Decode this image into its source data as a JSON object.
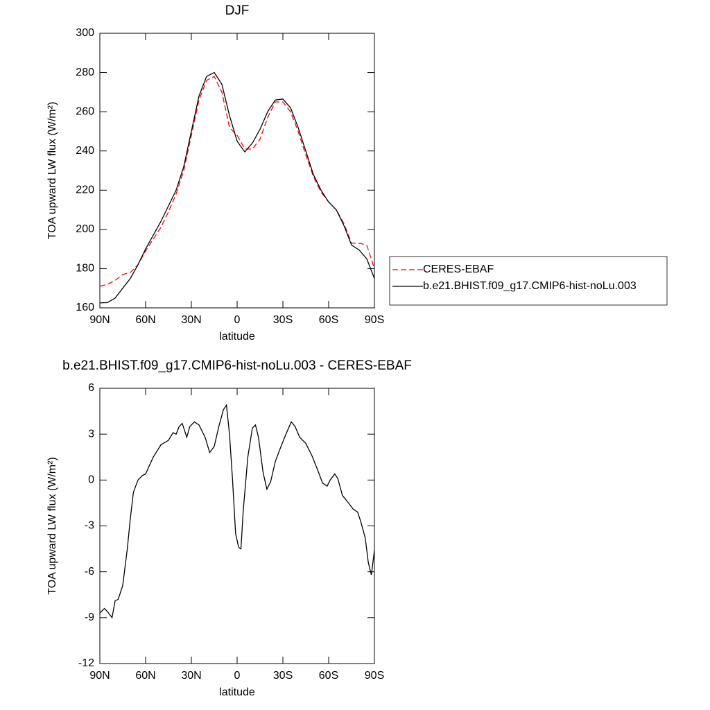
{
  "chart_data": [
    {
      "type": "line",
      "title": "DJF",
      "x_label": "latitude",
      "y_label": "TOA upward LW flux (W/m²)",
      "x": [
        90,
        85,
        80,
        75,
        70,
        65,
        60,
        55,
        50,
        45,
        40,
        35,
        30,
        25,
        20,
        15,
        10,
        5,
        0,
        -5,
        -10,
        -15,
        -20,
        -25,
        -30,
        -35,
        -40,
        -45,
        -50,
        -55,
        -60,
        -65,
        -70,
        -75,
        -80,
        -85,
        -90
      ],
      "series": [
        {
          "name": "CERES-EBAF",
          "color": "#ff0000",
          "dashed": true,
          "values": [
            171,
            172,
            174,
            177,
            178,
            182,
            189,
            195,
            201,
            209,
            218,
            230,
            248,
            266,
            276,
            278,
            270,
            252,
            248,
            241,
            241,
            246,
            257,
            265,
            265,
            260,
            250,
            238,
            227,
            219,
            214,
            210,
            203,
            193,
            193,
            192,
            180
          ]
        },
        {
          "name": "b.e21.BHIST.f09_g17.CMIP6-hist-noLu.003",
          "color": "#000000",
          "dashed": false,
          "values": [
            162.5,
            162.7,
            165,
            170,
            175,
            182,
            190,
            197,
            204,
            212,
            220,
            232,
            250,
            268,
            278,
            280,
            274,
            258,
            245,
            239.5,
            244,
            251,
            260,
            266,
            266.5,
            262,
            252,
            240,
            228,
            220,
            214,
            210,
            202,
            192,
            189.5,
            185,
            175
          ]
        }
      ],
      "xlim": [
        90,
        -90
      ],
      "xticks": [
        {
          "value": 90,
          "label": "90N"
        },
        {
          "value": 60,
          "label": "60N"
        },
        {
          "value": 30,
          "label": "30N"
        },
        0,
        {
          "value": -30,
          "label": "30S"
        },
        {
          "value": -60,
          "label": "60S"
        },
        {
          "value": -90,
          "label": "90S"
        }
      ],
      "ylim": [
        160,
        300
      ],
      "yticks": [
        160,
        180,
        200,
        220,
        240,
        260,
        280,
        300
      ],
      "legend": "right"
    },
    {
      "type": "line",
      "title": "b.e21.BHIST.f09_g17.CMIP6-hist-noLu.003 - CERES-EBAF",
      "x_label": "latitude",
      "y_label": "TOA upward LW flux (W/m²)",
      "x": [
        90,
        87,
        85,
        82,
        80,
        78,
        75,
        72,
        70,
        68,
        65,
        62,
        60,
        55,
        50,
        45,
        42,
        40,
        38,
        36,
        33,
        31,
        28,
        25,
        21,
        18,
        15,
        12,
        9,
        7,
        5,
        3,
        1,
        -1,
        -2.5,
        -4,
        -7,
        -10,
        -12,
        -14,
        -17,
        -19.5,
        -22,
        -25,
        -28,
        -32,
        -35.5,
        -38,
        -41,
        -45,
        -49,
        -53,
        -56,
        -59,
        -61,
        -64,
        -66,
        -69,
        -73,
        -76,
        -79,
        -81,
        -84,
        -86,
        -88,
        -90
      ],
      "series": [
        {
          "color": "#000000",
          "dashed": false,
          "values": [
            -8.7,
            -8.4,
            -8.6,
            -9.0,
            -7.9,
            -7.8,
            -6.9,
            -4.5,
            -2.5,
            -0.8,
            0,
            0.3,
            0.4,
            1.5,
            2.3,
            2.6,
            3.1,
            3.0,
            3.5,
            3.7,
            2.8,
            3.5,
            3.8,
            3.6,
            2.8,
            1.8,
            2.2,
            3.5,
            4.6,
            4.9,
            3,
            0,
            -3.5,
            -4.4,
            -4.5,
            -2,
            1.5,
            3.4,
            3.6,
            2.8,
            0.5,
            -0.6,
            -0.1,
            1.2,
            2.0,
            3.0,
            3.8,
            3.5,
            2.8,
            2.4,
            1.6,
            0.6,
            -0.2,
            -0.4,
            0.0,
            0.4,
            0.1,
            -1.0,
            -1.5,
            -1.9,
            -2.1,
            -2.7,
            -3.8,
            -5.4,
            -6.2,
            -4.6
          ]
        }
      ],
      "xlim": [
        90,
        -90
      ],
      "xticks": [
        {
          "value": 90,
          "label": "90N"
        },
        {
          "value": 60,
          "label": "60N"
        },
        {
          "value": 30,
          "label": "30N"
        },
        0,
        {
          "value": -30,
          "label": "30S"
        },
        {
          "value": -60,
          "label": "60S"
        },
        {
          "value": -90,
          "label": "90S"
        }
      ],
      "ylim": [
        -12,
        6
      ],
      "yticks": [
        -12,
        -9,
        -6,
        -3,
        0,
        3,
        6
      ]
    }
  ]
}
